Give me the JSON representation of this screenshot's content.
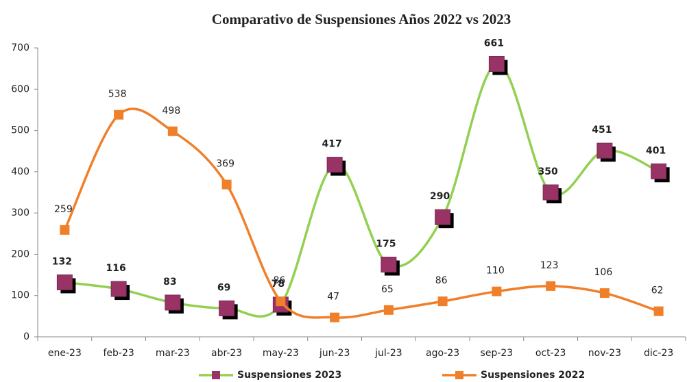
{
  "chart_data": {
    "type": "line",
    "title": "Comparativo de Suspensiones Años 2022 vs 2023",
    "categories": [
      "ene-23",
      "feb-23",
      "mar-23",
      "abr-23",
      "may-23",
      "jun-23",
      "jul-23",
      "ago-23",
      "sep-23",
      "oct-23",
      "nov-23",
      "dic-23"
    ],
    "series": [
      {
        "name": "Suspensiones 2023",
        "color": "#92d050",
        "marker_color": "#993366",
        "values": [
          132,
          116,
          83,
          69,
          78,
          417,
          175,
          290,
          661,
          350,
          451,
          401
        ]
      },
      {
        "name": "Suspensiones 2022",
        "color": "#f07f2a",
        "marker_color": "#f07f2a",
        "values": [
          259,
          538,
          498,
          369,
          86,
          47,
          65,
          86,
          110,
          123,
          106,
          62
        ]
      }
    ],
    "ylim": [
      0,
      700
    ],
    "yticks": [
      0,
      100,
      200,
      300,
      400,
      500,
      600,
      700
    ],
    "grid": false,
    "legend": "bottom",
    "smooth": true
  }
}
